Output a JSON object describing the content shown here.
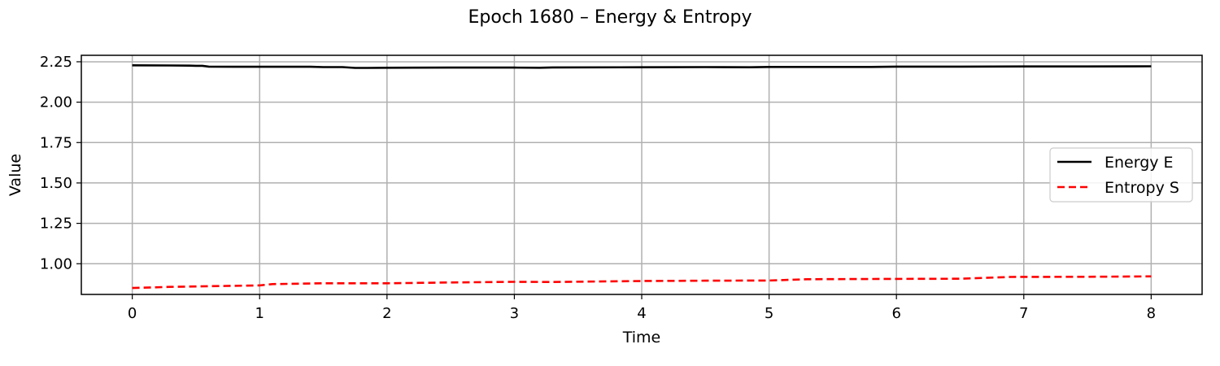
{
  "chart_data": {
    "type": "line",
    "title": "Epoch 1680 – Energy & Entropy",
    "xlabel": "Time",
    "ylabel": "Value",
    "xlim": [
      -0.4,
      8.4
    ],
    "ylim": [
      0.81,
      2.29
    ],
    "xticks": [
      0,
      1,
      2,
      3,
      4,
      5,
      6,
      7,
      8
    ],
    "yticks": [
      1.0,
      1.25,
      1.5,
      1.75,
      2.0,
      2.25
    ],
    "ytick_labels": [
      "1.00",
      "1.25",
      "1.50",
      "1.75",
      "2.00",
      "2.25"
    ],
    "grid": true,
    "legend_position": "center-right",
    "series": [
      {
        "name": "Energy E",
        "color": "#000000",
        "style": "solid",
        "x": [
          0,
          0.3,
          0.45,
          0.5,
          0.55,
          0.6,
          0.8,
          1.0,
          1.2,
          1.4,
          1.5,
          1.65,
          1.75,
          1.85,
          2.0,
          2.5,
          3.0,
          3.2,
          3.3,
          4.0,
          4.5,
          4.85,
          5.0,
          5.5,
          5.8,
          6.0,
          6.5,
          7.0,
          7.5,
          8.0
        ],
        "y": [
          2.228,
          2.227,
          2.226,
          2.225,
          2.225,
          2.22,
          2.219,
          2.219,
          2.219,
          2.219,
          2.217,
          2.217,
          2.212,
          2.212,
          2.213,
          2.214,
          2.214,
          2.213,
          2.215,
          2.216,
          2.217,
          2.216,
          2.218,
          2.218,
          2.218,
          2.22,
          2.22,
          2.221,
          2.221,
          2.222
        ]
      },
      {
        "name": "Entropy S",
        "color": "#ff0000",
        "style": "dashed",
        "x": [
          0,
          0.3,
          0.6,
          1.0,
          1.1,
          1.5,
          2.0,
          2.5,
          3.0,
          3.3,
          4.0,
          4.5,
          5.0,
          5.3,
          6.0,
          6.5,
          6.9,
          7.5,
          8.0
        ],
        "y": [
          0.85,
          0.857,
          0.861,
          0.866,
          0.874,
          0.879,
          0.879,
          0.884,
          0.888,
          0.887,
          0.893,
          0.895,
          0.896,
          0.904,
          0.906,
          0.907,
          0.918,
          0.919,
          0.922
        ]
      }
    ]
  }
}
